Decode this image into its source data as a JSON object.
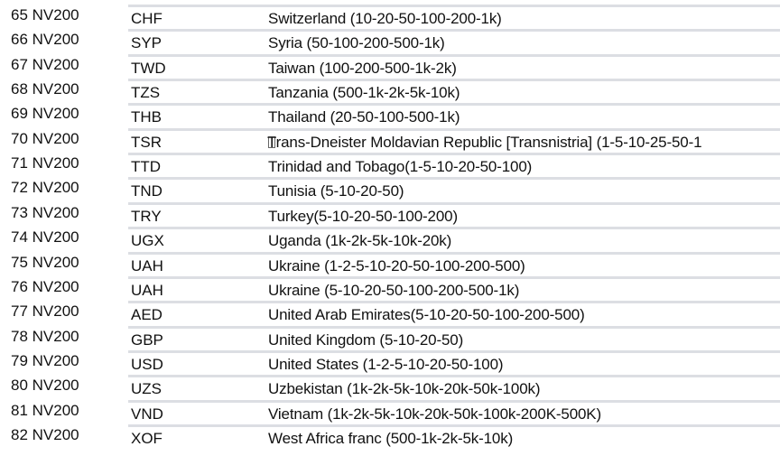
{
  "rows": [
    {
      "id": "65 NV200",
      "code": "CHF",
      "desc": "Switzerland (10-20-50-100-200-1k)"
    },
    {
      "id": "66 NV200",
      "code": "SYP",
      "desc": "Syria (50-100-200-500-1k)"
    },
    {
      "id": "67 NV200",
      "code": "TWD",
      "desc": "Taiwan (100-200-500-1k-2k)"
    },
    {
      "id": "68 NV200",
      "code": "TZS",
      "desc": "Tanzania (500-1k-2k-5k-10k)"
    },
    {
      "id": "69 NV200",
      "code": "THB",
      "desc": "Thailand (20-50-100-500-1k)"
    },
    {
      "id": "70 NV200",
      "code": "TSR",
      "desc": "Trans-Dneister Moldavian Republic [Transnistria] (1-5-10-25-50-1",
      "glyph": true
    },
    {
      "id": "71 NV200",
      "code": "TTD",
      "desc": "Trinidad and Tobago(1-5-10-20-50-100)"
    },
    {
      "id": "72 NV200",
      "code": "TND",
      "desc": "Tunisia (5-10-20-50)"
    },
    {
      "id": "73 NV200",
      "code": "TRY",
      "desc": "Turkey(5-10-20-50-100-200)"
    },
    {
      "id": "74 NV200",
      "code": "UGX",
      "desc": "Uganda (1k-2k-5k-10k-20k)"
    },
    {
      "id": "75 NV200",
      "code": "UAH",
      "desc": "Ukraine (1-2-5-10-20-50-100-200-500)"
    },
    {
      "id": "76 NV200",
      "code": "UAH",
      "desc": "Ukraine (5-10-20-50-100-200-500-1k)"
    },
    {
      "id": "77 NV200",
      "code": "AED",
      "desc": "United Arab Emirates(5-10-20-50-100-200-500)"
    },
    {
      "id": "78 NV200",
      "code": "GBP",
      "desc": "United Kingdom (5-10-20-50)"
    },
    {
      "id": "79 NV200",
      "code": "USD",
      "desc": "United States (1-2-5-10-20-50-100)"
    },
    {
      "id": "80 NV200",
      "code": "UZS",
      "desc": "Uzbekistan (1k-2k-5k-10k-20k-50k-100k)"
    },
    {
      "id": "81 NV200",
      "code": "VND",
      "desc": "Vietnam (1k-2k-5k-10k-20k-50k-100k-200K-500K)"
    },
    {
      "id": "82 NV200",
      "code": "XOF",
      "desc": "West Africa franc (500-1k-2k-5k-10k)"
    }
  ],
  "colors": {
    "rule": "#dcdee3",
    "text": "#111111"
  }
}
